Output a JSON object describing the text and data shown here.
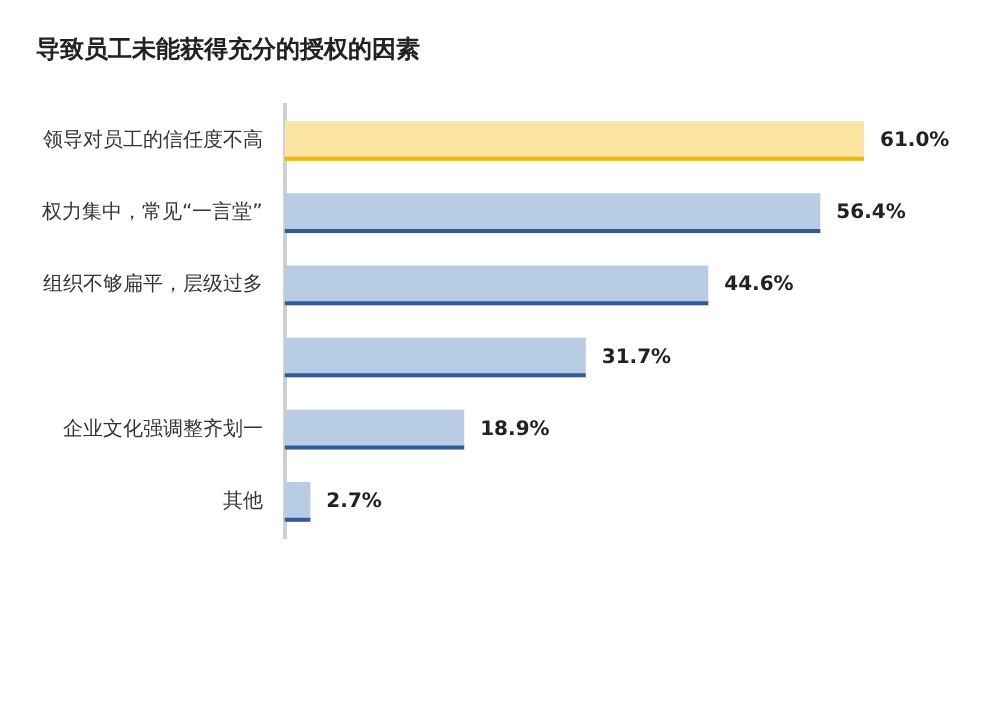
{
  "chart_data": {
    "type": "bar",
    "orientation": "horizontal",
    "title": "导致员工未能获得充分的授权的因素",
    "categories": [
      "领导对员工的信任度不高",
      "权力集中，常见“一言堂”",
      "组织不够扁平，层级过多",
      null,
      "企业文化强调整齐划一",
      "其他"
    ],
    "values": [
      61.0,
      56.4,
      44.6,
      31.7,
      18.9,
      2.7
    ],
    "value_labels": [
      "61.0%",
      "56.4%",
      "44.6%",
      "31.7%",
      "18.9%",
      "2.7%"
    ],
    "colors": [
      "#fbe3a0",
      "#b8cce4",
      "#b8cce4",
      "#b8cce4",
      "#b8cce4",
      "#b8cce4"
    ],
    "legend": false
  }
}
